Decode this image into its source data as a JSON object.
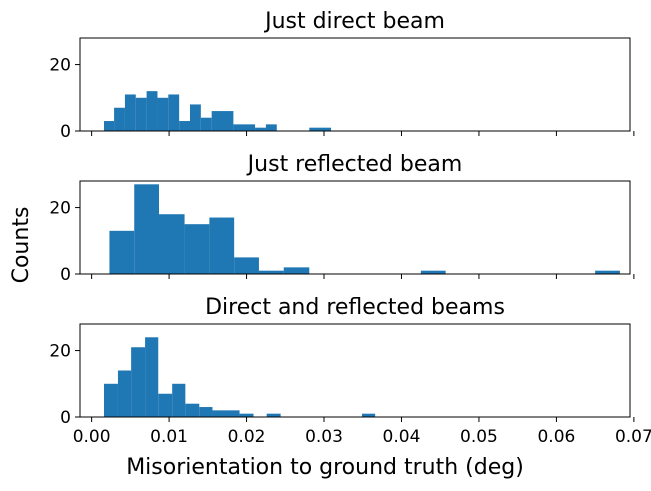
{
  "figure": {
    "xlabel": "Misorientation to ground truth (deg)",
    "ylabel": "Counts"
  },
  "chart_data": [
    {
      "type": "bar",
      "title": "Just direct beam",
      "bar_color": "#1f77b4",
      "xlim": [
        -0.0015,
        0.0695
      ],
      "ylim": [
        0,
        28
      ],
      "yticks": [
        0,
        20
      ],
      "xticks": [
        0.0,
        0.01,
        0.02,
        0.03,
        0.04,
        0.05,
        0.06,
        0.07
      ],
      "x_tick_labels_shown": false,
      "bins": [
        {
          "x0": 0.0016,
          "x1": 0.0029,
          "count": 3
        },
        {
          "x0": 0.0029,
          "x1": 0.0043,
          "count": 7
        },
        {
          "x0": 0.0043,
          "x1": 0.0057,
          "count": 11
        },
        {
          "x0": 0.0057,
          "x1": 0.0071,
          "count": 10
        },
        {
          "x0": 0.0071,
          "x1": 0.0085,
          "count": 12
        },
        {
          "x0": 0.0085,
          "x1": 0.0099,
          "count": 10
        },
        {
          "x0": 0.0099,
          "x1": 0.0113,
          "count": 11
        },
        {
          "x0": 0.0113,
          "x1": 0.0127,
          "count": 3
        },
        {
          "x0": 0.0127,
          "x1": 0.0141,
          "count": 8
        },
        {
          "x0": 0.0141,
          "x1": 0.0155,
          "count": 4
        },
        {
          "x0": 0.0155,
          "x1": 0.0183,
          "count": 6
        },
        {
          "x0": 0.0183,
          "x1": 0.0211,
          "count": 2
        },
        {
          "x0": 0.0211,
          "x1": 0.0225,
          "count": 1
        },
        {
          "x0": 0.0225,
          "x1": 0.0239,
          "count": 2
        },
        {
          "x0": 0.0281,
          "x1": 0.0309,
          "count": 1
        }
      ]
    },
    {
      "type": "bar",
      "title": "Just reflected beam",
      "bar_color": "#1f77b4",
      "xlim": [
        -0.0015,
        0.0695
      ],
      "ylim": [
        0,
        28
      ],
      "yticks": [
        0,
        20
      ],
      "xticks": [
        0.0,
        0.01,
        0.02,
        0.03,
        0.04,
        0.05,
        0.06,
        0.07
      ],
      "x_tick_labels_shown": false,
      "bins": [
        {
          "x0": 0.0023,
          "x1": 0.0055,
          "count": 13
        },
        {
          "x0": 0.0055,
          "x1": 0.0087,
          "count": 27
        },
        {
          "x0": 0.0087,
          "x1": 0.012,
          "count": 18
        },
        {
          "x0": 0.012,
          "x1": 0.0152,
          "count": 15
        },
        {
          "x0": 0.0152,
          "x1": 0.0184,
          "count": 17
        },
        {
          "x0": 0.0184,
          "x1": 0.0216,
          "count": 5
        },
        {
          "x0": 0.0216,
          "x1": 0.0248,
          "count": 1
        },
        {
          "x0": 0.0248,
          "x1": 0.0281,
          "count": 2
        },
        {
          "x0": 0.0425,
          "x1": 0.0457,
          "count": 1
        },
        {
          "x0": 0.065,
          "x1": 0.0682,
          "count": 1
        }
      ]
    },
    {
      "type": "bar",
      "title": "Direct and reflected beams",
      "bar_color": "#1f77b4",
      "xlim": [
        -0.0015,
        0.0695
      ],
      "ylim": [
        0,
        28
      ],
      "yticks": [
        0,
        20
      ],
      "xticks": [
        0.0,
        0.01,
        0.02,
        0.03,
        0.04,
        0.05,
        0.06,
        0.07
      ],
      "xtick_labels": [
        "0.00",
        "0.01",
        "0.02",
        "0.03",
        "0.04",
        "0.05",
        "0.06",
        "0.07"
      ],
      "x_tick_labels_shown": true,
      "bins": [
        {
          "x0": 0.0016,
          "x1": 0.0034,
          "count": 10
        },
        {
          "x0": 0.0034,
          "x1": 0.0051,
          "count": 14
        },
        {
          "x0": 0.0051,
          "x1": 0.0069,
          "count": 21
        },
        {
          "x0": 0.0069,
          "x1": 0.0086,
          "count": 24
        },
        {
          "x0": 0.0086,
          "x1": 0.0104,
          "count": 7
        },
        {
          "x0": 0.0104,
          "x1": 0.0121,
          "count": 10
        },
        {
          "x0": 0.0121,
          "x1": 0.0139,
          "count": 4
        },
        {
          "x0": 0.0139,
          "x1": 0.0156,
          "count": 3
        },
        {
          "x0": 0.0156,
          "x1": 0.0191,
          "count": 2
        },
        {
          "x0": 0.0191,
          "x1": 0.0209,
          "count": 1
        },
        {
          "x0": 0.0226,
          "x1": 0.0244,
          "count": 1
        },
        {
          "x0": 0.0349,
          "x1": 0.0366,
          "count": 1
        }
      ]
    }
  ]
}
